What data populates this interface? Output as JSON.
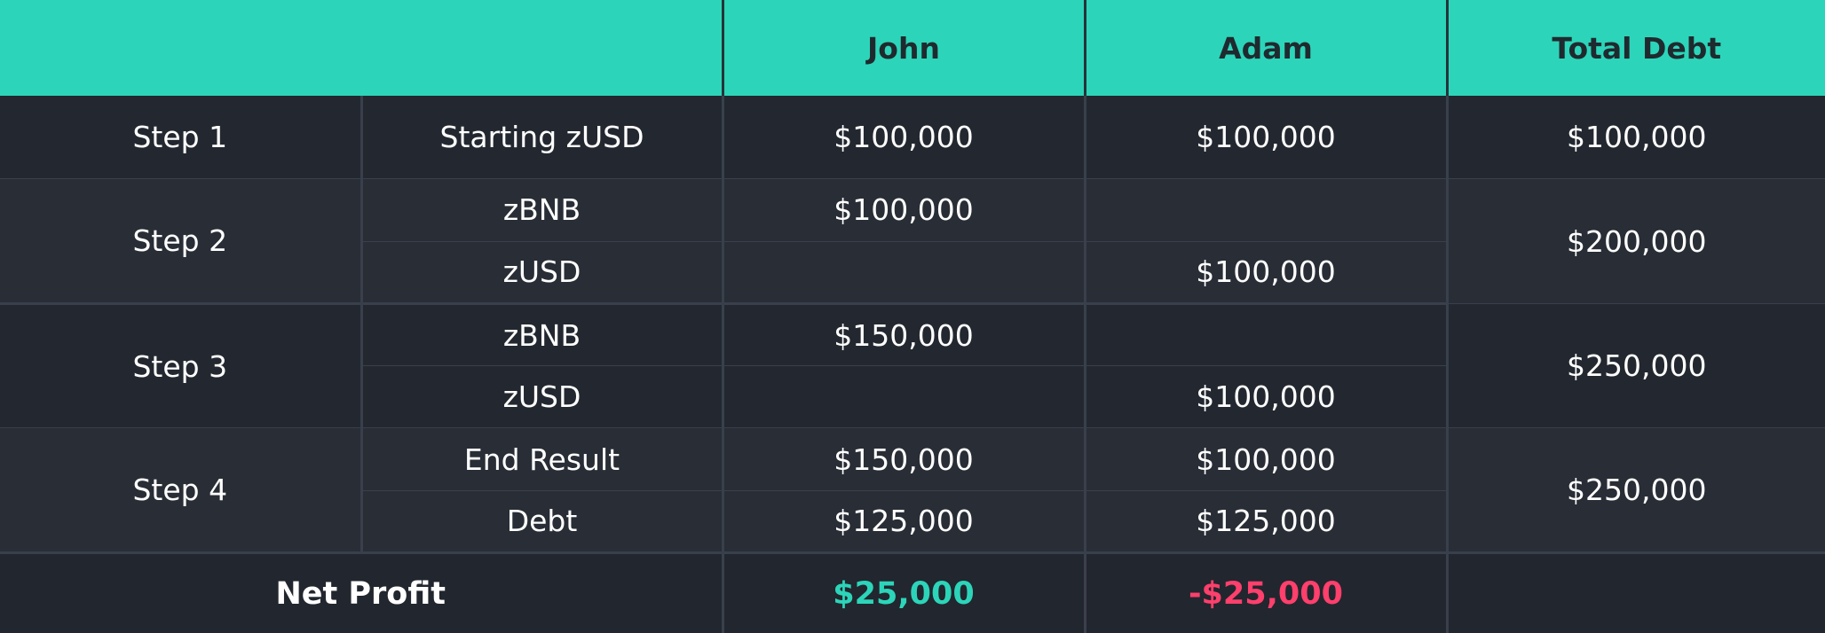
{
  "header": {
    "john": "John",
    "adam": "Adam",
    "total": "Total Debt"
  },
  "colors": {
    "header_bg": "#2cd5b9",
    "positive": "#2cd5b9",
    "negative": "#ff3f6c",
    "body_bg": "#22262e"
  },
  "rows": {
    "step1": {
      "label": "Step 1",
      "item": "Starting zUSD",
      "john": "$100,000",
      "adam": "$100,000",
      "total": "$100,000"
    },
    "step2": {
      "label": "Step 2",
      "total": "$200,000",
      "a": {
        "item": "zBNB",
        "john": "$100,000",
        "adam": ""
      },
      "b": {
        "item": "zUSD",
        "john": "",
        "adam": "$100,000"
      }
    },
    "step3": {
      "label": "Step 3",
      "total": "$250,000",
      "a": {
        "item": "zBNB",
        "john": "$150,000",
        "adam": ""
      },
      "b": {
        "item": "zUSD",
        "john": "",
        "adam": "$100,000"
      }
    },
    "step4": {
      "label": "Step 4",
      "total": "$250,000",
      "a": {
        "item": "End Result",
        "john": "$150,000",
        "adam": "$100,000"
      },
      "b": {
        "item": "Debt",
        "john": "$125,000",
        "adam": "$125,000"
      }
    }
  },
  "net": {
    "label": "Net Profit",
    "john": "$25,000",
    "adam": "-$25,000"
  }
}
